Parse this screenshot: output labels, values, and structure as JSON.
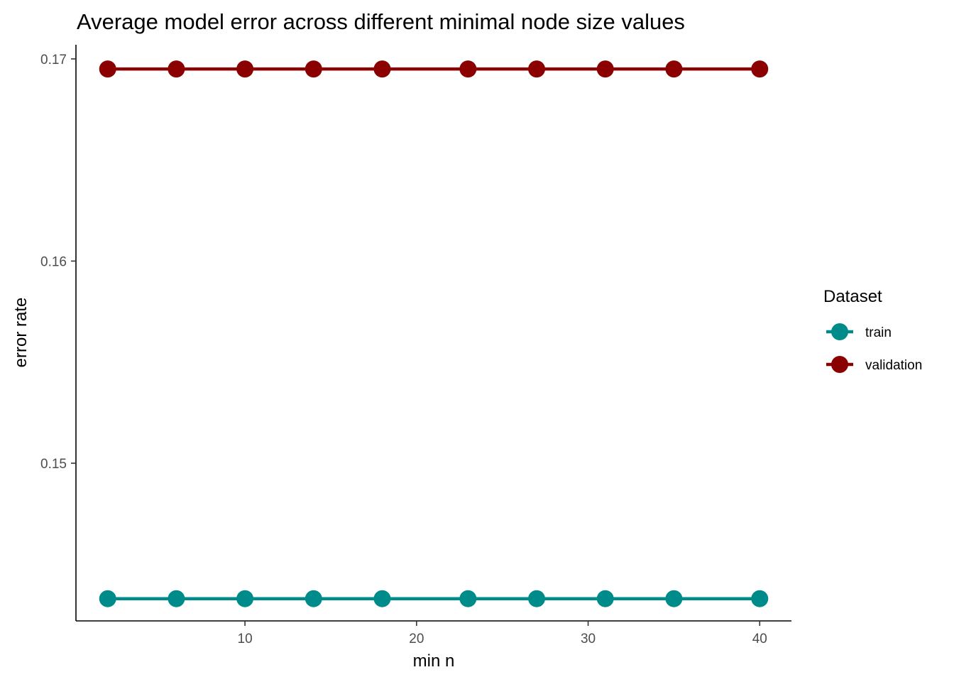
{
  "chart_data": {
    "type": "line",
    "title": "Average model error across different minimal node size values",
    "xlabel": "min n",
    "ylabel": "error rate",
    "xlim": [
      0.15,
      41.85
    ],
    "ylim": [
      0.1422,
      0.1707
    ],
    "x_ticks": [
      10,
      20,
      30,
      40
    ],
    "x_tick_labels": [
      "10",
      "20",
      "30",
      "40"
    ],
    "y_ticks": [
      0.15,
      0.16,
      0.17
    ],
    "y_tick_labels": [
      "0.15",
      "0.16",
      "0.17"
    ],
    "grid": false,
    "legend": {
      "title": "Dataset",
      "placement": "right"
    },
    "x": [
      2,
      6,
      10,
      14,
      18,
      23,
      27,
      31,
      35,
      40
    ],
    "series": [
      {
        "name": "train",
        "color": "#008B8B",
        "values": [
          0.1433,
          0.1433,
          0.1433,
          0.1433,
          0.1433,
          0.1433,
          0.1433,
          0.1433,
          0.1433,
          0.1433
        ]
      },
      {
        "name": "validation",
        "color": "#8B0000",
        "values": [
          0.1695,
          0.1695,
          0.1695,
          0.1695,
          0.1695,
          0.1695,
          0.1695,
          0.1695,
          0.1695,
          0.1695
        ]
      }
    ]
  }
}
